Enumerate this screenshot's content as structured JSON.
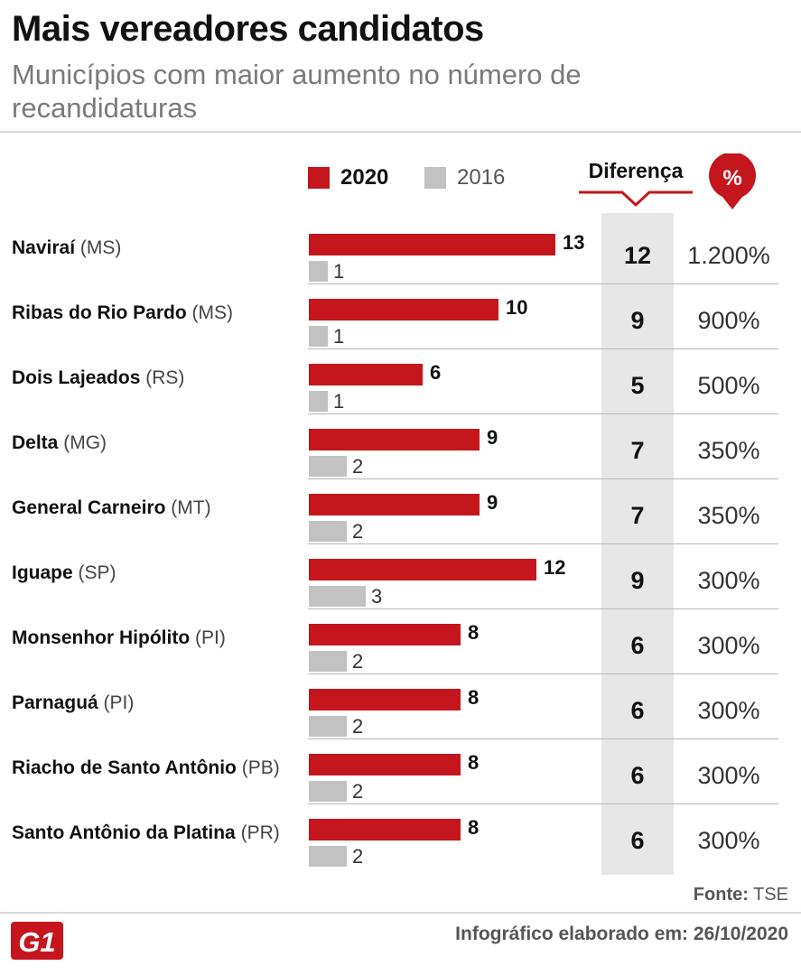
{
  "header": {
    "title": "Mais vereadores candidatos",
    "subtitle": "Municípios com maior aumento no número de recandidaturas"
  },
  "legend": {
    "label_2020": "2020",
    "label_2016": "2016"
  },
  "columns": {
    "diff_header": "Diferença",
    "pct_badge": "%"
  },
  "colors": {
    "bar_2020": "#c4161c",
    "bar_2016": "#c2c2c2",
    "diff_band": "#e7e7e7",
    "logo": "#c4161c"
  },
  "chart_data": {
    "type": "bar",
    "orientation": "horizontal",
    "title": "Mais vereadores candidatos",
    "subtitle": "Municípios com maior aumento no número de recandidaturas",
    "xlim": [
      0,
      13
    ],
    "categories": [
      "Naviraí (MS)",
      "Ribas do Rio Pardo (MS)",
      "Dois Lajeados (RS)",
      "Delta (MG)",
      "General Carneiro (MT)",
      "Iguape (SP)",
      "Monsenhor Hipólito (PI)",
      "Parnaguá (PI)",
      "Riacho de Santo Antônio (PB)",
      "Santo Antônio da Platina (PR)"
    ],
    "series": [
      {
        "name": "2020",
        "values": [
          13,
          10,
          6,
          9,
          9,
          12,
          8,
          8,
          8,
          8
        ]
      },
      {
        "name": "2016",
        "values": [
          1,
          1,
          1,
          2,
          2,
          3,
          2,
          2,
          2,
          2
        ]
      }
    ],
    "rows": [
      {
        "name": "Naviraí",
        "state": "(MS)",
        "v2020": 13,
        "v2016": 1,
        "v2020_label": "13",
        "v2016_label": "1",
        "diff": "12",
        "pct": "1.200%"
      },
      {
        "name": "Ribas do Rio Pardo",
        "state": "(MS)",
        "v2020": 10,
        "v2016": 1,
        "v2020_label": "10",
        "v2016_label": "1",
        "diff": "9",
        "pct": "900%"
      },
      {
        "name": "Dois Lajeados",
        "state": "(RS)",
        "v2020": 6,
        "v2016": 1,
        "v2020_label": "6",
        "v2016_label": "1",
        "diff": "5",
        "pct": "500%"
      },
      {
        "name": "Delta",
        "state": "(MG)",
        "v2020": 9,
        "v2016": 2,
        "v2020_label": "9",
        "v2016_label": "2",
        "diff": "7",
        "pct": "350%"
      },
      {
        "name": "General Carneiro",
        "state": "(MT)",
        "v2020": 9,
        "v2016": 2,
        "v2020_label": "9",
        "v2016_label": "2",
        "diff": "7",
        "pct": "350%"
      },
      {
        "name": "Iguape",
        "state": "(SP)",
        "v2020": 12,
        "v2016": 3,
        "v2020_label": "12",
        "v2016_label": "3",
        "diff": "9",
        "pct": "300%"
      },
      {
        "name": "Monsenhor Hipólito",
        "state": "(PI)",
        "v2020": 8,
        "v2016": 2,
        "v2020_label": "8",
        "v2016_label": "2",
        "diff": "6",
        "pct": "300%"
      },
      {
        "name": "Parnaguá",
        "state": "(PI)",
        "v2020": 8,
        "v2016": 2,
        "v2020_label": "8",
        "v2016_label": "2",
        "diff": "6",
        "pct": "300%"
      },
      {
        "name": "Riacho de Santo Antônio",
        "state": "(PB)",
        "v2020": 8,
        "v2016": 2,
        "v2020_label": "8",
        "v2016_label": "2",
        "diff": "6",
        "pct": "300%"
      },
      {
        "name": "Santo Antônio da Platina",
        "state": "(PR)",
        "v2020": 8,
        "v2016": 2,
        "v2020_label": "8",
        "v2016_label": "2",
        "diff": "6",
        "pct": "300%"
      }
    ]
  },
  "footer": {
    "source_label": "Fonte:",
    "source_value": "TSE",
    "credit_label": "Infográfico elaborado em:",
    "credit_date": "26/10/2020",
    "logo_text": "G1"
  }
}
